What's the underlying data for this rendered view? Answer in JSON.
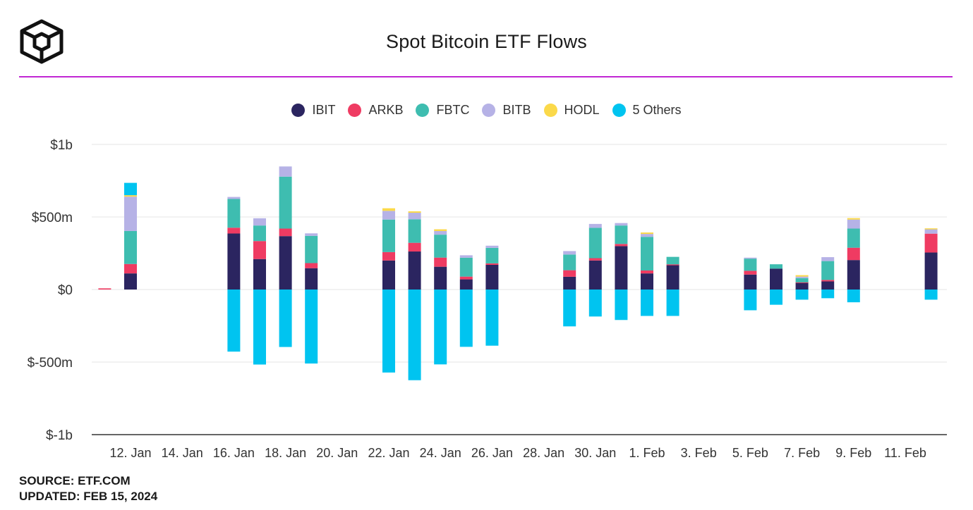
{
  "header": {
    "title": "Spot Bitcoin ETF Flows",
    "accent_color": "#c026d3"
  },
  "legend": [
    {
      "label": "IBIT",
      "color": "#2b2560"
    },
    {
      "label": "ARKB",
      "color": "#ef3b62"
    },
    {
      "label": "FBTC",
      "color": "#3ebdb0"
    },
    {
      "label": "BITB",
      "color": "#b6b2e6"
    },
    {
      "label": "HODL",
      "color": "#fbd94a"
    },
    {
      "label": "5 Others",
      "color": "#00c4f0"
    }
  ],
  "footer": {
    "source": "SOURCE: ETF.COM",
    "updated": "UPDATED: FEB 15, 2024"
  },
  "chart_data": {
    "type": "bar",
    "stacked": true,
    "title": "Spot Bitcoin ETF Flows",
    "xlabel": "",
    "ylabel": "",
    "ylim": [
      -1000,
      1000
    ],
    "units": "USD millions",
    "grid": true,
    "legend_position": "top-center",
    "y_ticks": [
      {
        "value": 1000,
        "label": "$1b"
      },
      {
        "value": 500,
        "label": "$500m"
      },
      {
        "value": 0,
        "label": "$0"
      },
      {
        "value": -500,
        "label": "$-500m"
      },
      {
        "value": -1000,
        "label": "$-1b"
      }
    ],
    "x_tick_labels": [
      "12. Jan",
      "14. Jan",
      "16. Jan",
      "18. Jan",
      "20. Jan",
      "22. Jan",
      "24. Jan",
      "26. Jan",
      "28. Jan",
      "30. Jan",
      "1. Feb",
      "3. Feb",
      "5. Feb",
      "7. Feb",
      "9. Feb",
      "11. Feb"
    ],
    "categories": [
      "2024-01-11",
      "2024-01-12",
      "2024-01-16",
      "2024-01-17",
      "2024-01-18",
      "2024-01-19",
      "2024-01-22",
      "2024-01-23",
      "2024-01-24",
      "2024-01-25",
      "2024-01-26",
      "2024-01-29",
      "2024-01-30",
      "2024-01-31",
      "2024-02-01",
      "2024-02-02",
      "2024-02-05",
      "2024-02-06",
      "2024-02-07",
      "2024-02-08",
      "2024-02-09",
      "2024-02-12"
    ],
    "series": [
      {
        "name": "IBIT",
        "values": [
          0,
          111,
          386,
          210,
          368,
          147,
          200,
          262,
          157,
          70,
          170,
          88,
          200,
          299,
          111,
          168,
          103,
          144,
          47,
          56,
          203,
          255
        ]
      },
      {
        "name": "ARKB",
        "values": [
          8,
          65,
          40,
          124,
          52,
          35,
          58,
          60,
          63,
          19,
          10,
          45,
          16,
          15,
          20,
          5,
          26,
          0,
          2,
          10,
          85,
          130
        ]
      },
      {
        "name": "FBTC",
        "values": [
          0,
          227,
          198,
          107,
          358,
          188,
          224,
          162,
          158,
          130,
          107,
          108,
          209,
          127,
          232,
          52,
          84,
          30,
          30,
          130,
          132,
          0
        ]
      },
      {
        "name": "BITB",
        "values": [
          0,
          237,
          14,
          50,
          70,
          17,
          60,
          45,
          25,
          17,
          15,
          24,
          27,
          17,
          20,
          0,
          6,
          0,
          10,
          27,
          62,
          30
        ]
      },
      {
        "name": "HODL",
        "values": [
          0,
          10,
          0,
          0,
          0,
          0,
          18,
          10,
          12,
          0,
          0,
          0,
          0,
          0,
          10,
          0,
          0,
          0,
          10,
          0,
          10,
          6
        ]
      },
      {
        "name": "5 Others",
        "values": [
          0,
          85,
          -428,
          -517,
          -396,
          -510,
          -572,
          -625,
          -516,
          -395,
          -387,
          -254,
          -186,
          -210,
          -182,
          -182,
          -143,
          -105,
          -70,
          -60,
          -88,
          -70
        ]
      }
    ]
  }
}
